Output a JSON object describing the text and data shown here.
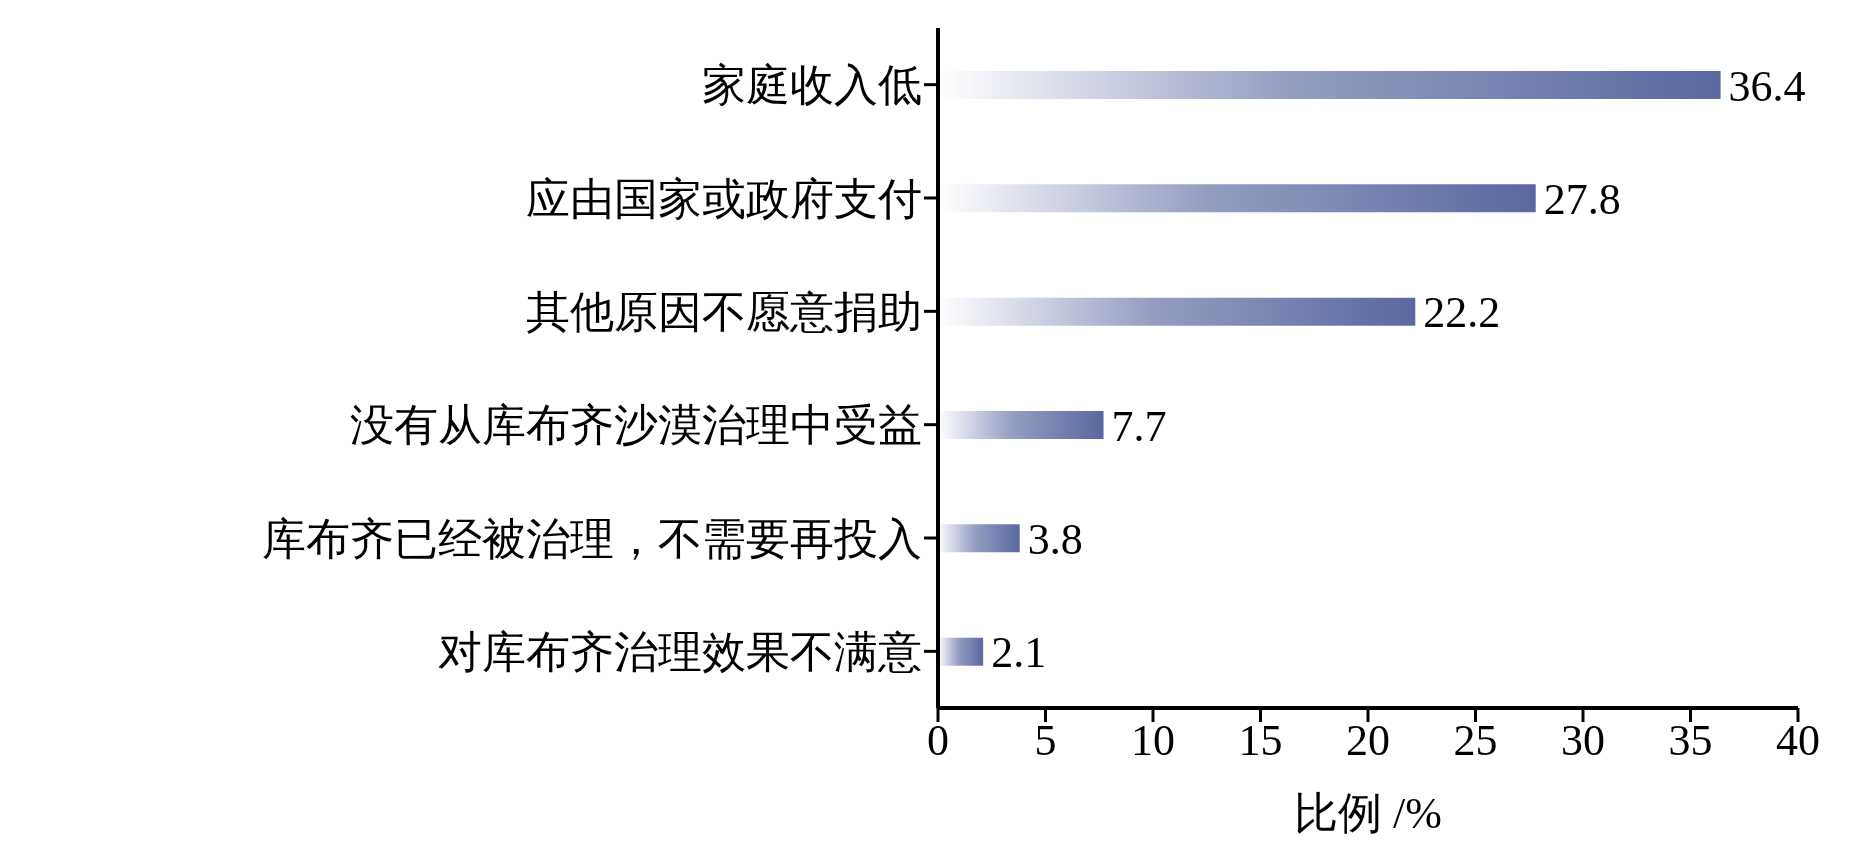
{
  "chart_data": {
    "type": "bar",
    "orientation": "horizontal",
    "categories": [
      "家庭收入低",
      "应由国家或政府支付",
      "其他原因不愿意捐助",
      "没有从库布齐沙漠治理中受益",
      "库布齐已经被治理，不需要再投入",
      "对库布齐治理效果不满意"
    ],
    "values": [
      36.4,
      27.8,
      22.2,
      7.7,
      3.8,
      2.1
    ],
    "color": "#5b68a0",
    "xlim": [
      0,
      40
    ],
    "xticks": [
      0,
      5,
      10,
      15,
      20,
      25,
      30,
      35,
      40
    ],
    "xlabel": "比例 /%",
    "data_labels": true
  }
}
